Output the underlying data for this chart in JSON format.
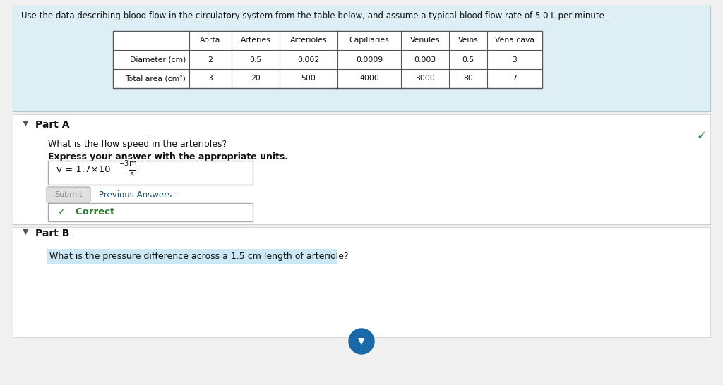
{
  "bg_top": "#ddeef4",
  "bg_white": "#ffffff",
  "page_bg": "#f0f0f0",
  "header_text": "Use the data describing blood flow in the circulatory system from the table below, and assume a typical blood flow rate of 5.0 L per minute.",
  "table_headers": [
    "Aorta",
    "Arteries",
    "Arterioles",
    "Capillaries",
    "Venules",
    "Veins",
    "Vena cava"
  ],
  "row1_label": "Diameter (cm)",
  "row2_label": "Total area (cm²)",
  "row1_values": [
    "2",
    "0.5",
    "0.002",
    "0.0009",
    "0.003",
    "0.5",
    "3"
  ],
  "row2_values": [
    "3",
    "20",
    "500",
    "4000",
    "3000",
    "80",
    "7"
  ],
  "partA_label": "Part A",
  "partA_q": "What is the flow speed in the arterioles?",
  "partA_instruct": "Express your answer with the appropriate units.",
  "submit_text": "Submit",
  "prev_answers_text": "Previous Answers",
  "correct_text": "✓   Correct",
  "partB_label": "Part B",
  "partB_q": "What is the pressure difference across a 1.5 cm length of arteriole?",
  "checkmark_color": "#2e7d32",
  "link_color": "#1a5276",
  "highlight_color": "#cce8f4"
}
